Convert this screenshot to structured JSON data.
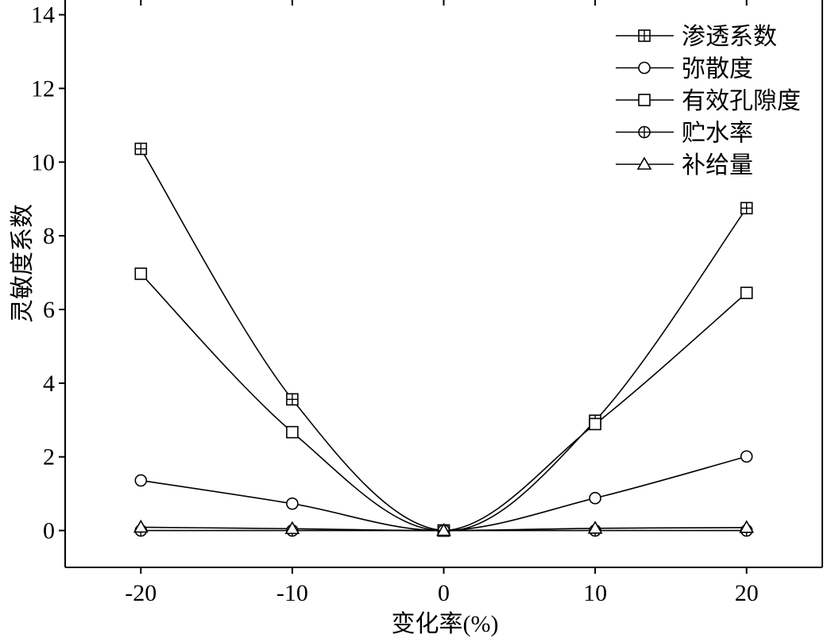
{
  "chart_data": {
    "type": "line",
    "x": [
      -20,
      -10,
      0,
      10,
      20
    ],
    "xlabel": "变化率(%)",
    "ylabel": "灵敏度系数",
    "ylabel_color": "#3d3b20",
    "xlim": [
      -25,
      25
    ],
    "ylim": [
      -1,
      14.4
    ],
    "xticks": [
      -20,
      -10,
      0,
      10,
      20
    ],
    "yticks": [
      0,
      2,
      4,
      6,
      8,
      10,
      12,
      14
    ],
    "grid": false,
    "legend": "top-right",
    "series": [
      {
        "name": "渗透系数",
        "marker": "square-plus",
        "values": [
          10.36,
          3.56,
          0,
          2.98,
          8.75
        ]
      },
      {
        "name": "弥散度",
        "marker": "circle",
        "values": [
          1.36,
          0.73,
          0,
          0.88,
          2.01
        ]
      },
      {
        "name": "有效孔隙度",
        "marker": "square",
        "values": [
          6.97,
          2.67,
          0,
          2.89,
          6.45
        ]
      },
      {
        "name": "贮水率",
        "marker": "circle-plus",
        "values": [
          0,
          0,
          0,
          0,
          0
        ]
      },
      {
        "name": "补给量",
        "marker": "triangle",
        "values": [
          0.09,
          0.05,
          0,
          0.06,
          0.08
        ]
      }
    ]
  }
}
